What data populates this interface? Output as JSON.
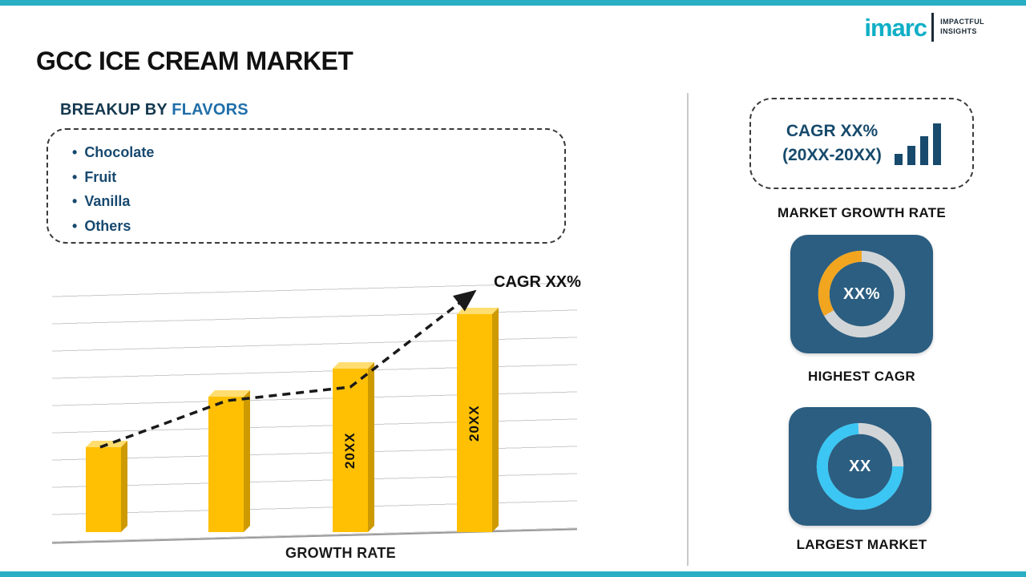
{
  "colors": {
    "accent_teal": "#29aec4",
    "navy": "#174a6c",
    "blue_highlight": "#1f6ea9",
    "bar_yellow": "#ffc004",
    "card_navy": "#2b5e81",
    "donut_orange": "#f2a51f",
    "donut_cyan": "#3bc6f3",
    "donut_track": "#d2d5d7"
  },
  "logo": {
    "name": "imarc",
    "tagline_line1": "IMPACTFUL",
    "tagline_line2": "INSIGHTS"
  },
  "header": {
    "title": "GCC ICE CREAM MARKET"
  },
  "left": {
    "section_title": {
      "prefix": "BREAKUP BY ",
      "highlight": "FLAVORS"
    },
    "flavors": [
      "Chocolate",
      "Fruit",
      "Vanilla",
      "Others"
    ]
  },
  "right": {
    "cagr_box": {
      "line1": "CAGR XX%",
      "line2": "(20XX-20XX)"
    },
    "market_growth_label": "MARKET GROWTH RATE",
    "highest_cagr": {
      "value": "XX%",
      "label": "HIGHEST CAGR"
    },
    "largest_market": {
      "value": "XX",
      "label": "LARGEST MARKET"
    }
  },
  "chart_data": {
    "type": "bar",
    "title": "",
    "categories": [
      "",
      "",
      "20XX",
      "20XX"
    ],
    "values": [
      39,
      62,
      75,
      100
    ],
    "value_note": "relative bar heights as percent of tallest bar; actual values masked as 20XX in source",
    "xlabel": "GROWTH RATE",
    "ylabel": "",
    "trend_annotation": "CAGR XX%",
    "legend": null,
    "grid": "horizontal, slight 3D skew"
  }
}
